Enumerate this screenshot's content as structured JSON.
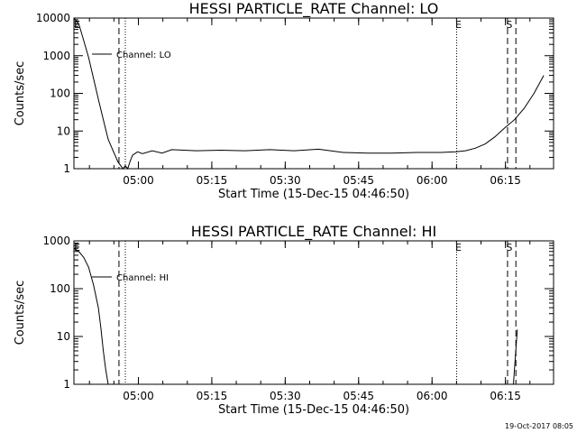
{
  "chart_data": [
    {
      "type": "line",
      "title": "HESSI PARTICLE_RATE Channel: LO",
      "xlabel": "Start Time (15-Dec-15 04:46:50)",
      "ylabel": "Counts/sec",
      "yscale": "log",
      "ylim": [
        1,
        10000
      ],
      "xlim_minutes": [
        0,
        98
      ],
      "x_ticks": [
        {
          "t": 13.17,
          "label": "05:00"
        },
        {
          "t": 28.17,
          "label": "05:15"
        },
        {
          "t": 43.17,
          "label": "05:30"
        },
        {
          "t": 58.17,
          "label": "05:45"
        },
        {
          "t": 73.17,
          "label": "06:00"
        },
        {
          "t": 88.17,
          "label": "06:15"
        }
      ],
      "y_ticks": [
        {
          "v": 1,
          "label": "1"
        },
        {
          "v": 10,
          "label": "10"
        },
        {
          "v": 100,
          "label": "100"
        },
        {
          "v": 1000,
          "label": "1000"
        },
        {
          "v": 10000,
          "label": "10000"
        }
      ],
      "series": [
        {
          "name": "Channel: LO",
          "x": [
            0,
            1,
            2,
            3,
            4,
            5,
            6,
            7,
            8,
            9,
            10,
            10.5,
            11,
            11.5,
            12,
            13,
            14,
            16,
            18,
            20,
            25,
            30,
            35,
            40,
            45,
            50,
            55,
            60,
            65,
            70,
            75,
            78,
            80,
            82,
            84,
            86,
            88,
            90,
            92,
            94,
            96
          ],
          "y": [
            10000,
            7000,
            2500,
            900,
            250,
            70,
            20,
            6,
            3,
            1.5,
            1,
            1.2,
            0.8,
            1.6,
            2.3,
            2.8,
            2.5,
            3,
            2.6,
            3.2,
            3,
            3.1,
            3,
            3.2,
            3,
            3.3,
            2.7,
            2.6,
            2.6,
            2.7,
            2.7,
            2.8,
            3,
            3.5,
            4.5,
            7,
            12,
            20,
            40,
            100,
            300
          ]
        }
      ],
      "vlines": [
        {
          "t": 9.2,
          "style": "dashed"
        },
        {
          "t": 10.5,
          "style": "dotted"
        },
        {
          "t": 78.2,
          "style": "dotted"
        },
        {
          "t": 88.6,
          "style": "dashed"
        },
        {
          "t": 90.3,
          "style": "dashed"
        }
      ],
      "markers": [
        {
          "t": 0.1,
          "label": "E"
        },
        {
          "t": 78.0,
          "label": "E"
        },
        {
          "t": 88.4,
          "label": "S"
        }
      ],
      "legend": {
        "text": "Channel: LO",
        "position": "top-left"
      }
    },
    {
      "type": "line",
      "title": "HESSI PARTICLE_RATE Channel: HI",
      "xlabel": "Start Time (15-Dec-15 04:46:50)",
      "ylabel": "Counts/sec",
      "yscale": "log",
      "ylim": [
        1,
        1000
      ],
      "xlim_minutes": [
        0,
        98
      ],
      "x_ticks": [
        {
          "t": 13.17,
          "label": "05:00"
        },
        {
          "t": 28.17,
          "label": "05:15"
        },
        {
          "t": 43.17,
          "label": "05:30"
        },
        {
          "t": 58.17,
          "label": "05:45"
        },
        {
          "t": 73.17,
          "label": "06:00"
        },
        {
          "t": 88.17,
          "label": "06:15"
        }
      ],
      "y_ticks": [
        {
          "v": 1,
          "label": "1"
        },
        {
          "v": 10,
          "label": "10"
        },
        {
          "v": 100,
          "label": "100"
        },
        {
          "v": 1000,
          "label": "1000"
        }
      ],
      "series": [
        {
          "name": "Channel: HI",
          "x": [
            0,
            1,
            2,
            3,
            4,
            5,
            5.5,
            6,
            6.5,
            7,
            89.8,
            90.2,
            90.6
          ],
          "y": [
            700,
            600,
            450,
            280,
            120,
            40,
            15,
            5,
            2,
            1,
            1,
            4,
            14
          ]
        }
      ],
      "vlines": [
        {
          "t": 9.2,
          "style": "dashed"
        },
        {
          "t": 10.5,
          "style": "dotted"
        },
        {
          "t": 78.2,
          "style": "dotted"
        },
        {
          "t": 88.6,
          "style": "dashed"
        },
        {
          "t": 90.3,
          "style": "dashed"
        }
      ],
      "markers": [
        {
          "t": 0.1,
          "label": "E"
        },
        {
          "t": 78.0,
          "label": "E"
        },
        {
          "t": 88.4,
          "label": "S"
        }
      ],
      "legend": {
        "text": "Channel: HI",
        "position": "top-left"
      }
    }
  ],
  "footer": {
    "timestamp": "19-Oct-2017 08:05"
  }
}
